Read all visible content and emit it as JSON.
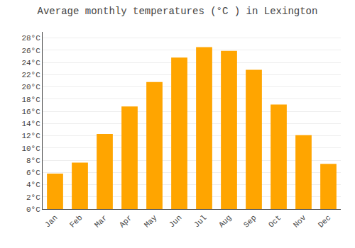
{
  "chart_data": {
    "type": "bar",
    "title": "Average monthly temperatures (°C ) in Lexington",
    "categories": [
      "Jan",
      "Feb",
      "Mar",
      "Apr",
      "May",
      "Jun",
      "Jul",
      "Aug",
      "Sep",
      "Oct",
      "Nov",
      "Dec"
    ],
    "values": [
      5.8,
      7.6,
      12.3,
      16.8,
      20.8,
      24.8,
      26.5,
      25.9,
      22.8,
      17.1,
      12.1,
      7.4
    ],
    "color": "#FFA500",
    "ylim": [
      0,
      29
    ],
    "yticks": [
      {
        "value": 0,
        "label": "0°C"
      },
      {
        "value": 2,
        "label": "2°C"
      },
      {
        "value": 4,
        "label": "4°C"
      },
      {
        "value": 6,
        "label": "6°C"
      },
      {
        "value": 8,
        "label": "8°C"
      },
      {
        "value": 10,
        "label": "10°C"
      },
      {
        "value": 12,
        "label": "12°C"
      },
      {
        "value": 14,
        "label": "14°C"
      },
      {
        "value": 16,
        "label": "16°C"
      },
      {
        "value": 18,
        "label": "18°C"
      },
      {
        "value": 20,
        "label": "20°C"
      },
      {
        "value": 22,
        "label": "22°C"
      },
      {
        "value": 24,
        "label": "24°C"
      },
      {
        "value": 26,
        "label": "26°C"
      },
      {
        "value": 28,
        "label": "28°C"
      }
    ],
    "grid": true
  }
}
